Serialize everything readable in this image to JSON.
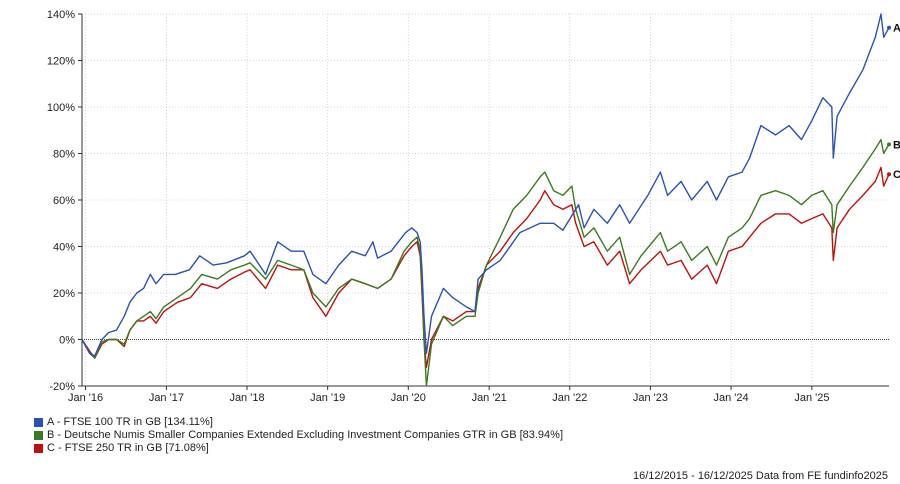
{
  "chart_data": {
    "type": "line",
    "title": "",
    "xlabel": "",
    "ylabel": "",
    "x_ticks": [
      "Jan '16",
      "Jan '17",
      "Jan '18",
      "Jan '19",
      "Jan '20",
      "Jan '21",
      "Jan '22",
      "Jan '23",
      "Jan '24",
      "Jan '25"
    ],
    "y_ticks": [
      "140%",
      "120%",
      "100%",
      "80%",
      "60%",
      "40%",
      "20%",
      "0%",
      "-20%"
    ],
    "ylim": [
      -20,
      140
    ],
    "xlim": [
      "2015-12-16",
      "2025-12-16"
    ],
    "grid": true,
    "zero_line": true,
    "legend_position": "bottom-left",
    "series": [
      {
        "name": "A - FTSE 100 TR in GB [134.11%]",
        "end_label": "A",
        "color": "#2a52b4",
        "points": [
          [
            "2015-12-16",
            0
          ],
          [
            "2016-01-20",
            -6
          ],
          [
            "2016-02-12",
            -7
          ],
          [
            "2016-03-15",
            0
          ],
          [
            "2016-04-15",
            3
          ],
          [
            "2016-05-20",
            4
          ],
          [
            "2016-06-24",
            10
          ],
          [
            "2016-07-20",
            16
          ],
          [
            "2016-08-20",
            20
          ],
          [
            "2016-09-20",
            22
          ],
          [
            "2016-10-20",
            28
          ],
          [
            "2016-11-15",
            24
          ],
          [
            "2016-12-20",
            28
          ],
          [
            "2017-02-10",
            28
          ],
          [
            "2017-04-15",
            30
          ],
          [
            "2017-06-01",
            36
          ],
          [
            "2017-08-01",
            32
          ],
          [
            "2017-10-01",
            33
          ],
          [
            "2017-12-20",
            36
          ],
          [
            "2018-01-15",
            38
          ],
          [
            "2018-03-26",
            28
          ],
          [
            "2018-05-20",
            42
          ],
          [
            "2018-07-20",
            38
          ],
          [
            "2018-09-15",
            38
          ],
          [
            "2018-10-26",
            28
          ],
          [
            "2018-12-24",
            24
          ],
          [
            "2019-02-20",
            32
          ],
          [
            "2019-04-20",
            38
          ],
          [
            "2019-06-20",
            36
          ],
          [
            "2019-07-25",
            42
          ],
          [
            "2019-08-15",
            35
          ],
          [
            "2019-10-15",
            38
          ],
          [
            "2019-12-20",
            46
          ],
          [
            "2020-01-17",
            48
          ],
          [
            "2020-02-10",
            46
          ],
          [
            "2020-02-24",
            42
          ],
          [
            "2020-03-03",
            30
          ],
          [
            "2020-03-12",
            10
          ],
          [
            "2020-03-23",
            -6
          ],
          [
            "2020-04-15",
            10
          ],
          [
            "2020-06-08",
            22
          ],
          [
            "2020-07-20",
            18
          ],
          [
            "2020-09-20",
            14
          ],
          [
            "2020-10-29",
            12
          ],
          [
            "2020-11-12",
            26
          ],
          [
            "2020-12-20",
            30
          ],
          [
            "2021-02-20",
            34
          ],
          [
            "2021-05-20",
            46
          ],
          [
            "2021-08-20",
            50
          ],
          [
            "2021-10-20",
            50
          ],
          [
            "2021-12-01",
            47
          ],
          [
            "2022-01-15",
            54
          ],
          [
            "2022-02-10",
            58
          ],
          [
            "2022-03-07",
            48
          ],
          [
            "2022-04-20",
            56
          ],
          [
            "2022-06-20",
            50
          ],
          [
            "2022-08-15",
            58
          ],
          [
            "2022-09-29",
            50
          ],
          [
            "2022-12-20",
            62
          ],
          [
            "2023-02-15",
            72
          ],
          [
            "2023-03-20",
            62
          ],
          [
            "2023-05-20",
            68
          ],
          [
            "2023-07-07",
            60
          ],
          [
            "2023-09-15",
            68
          ],
          [
            "2023-10-27",
            60
          ],
          [
            "2023-12-20",
            70
          ],
          [
            "2024-02-20",
            72
          ],
          [
            "2024-03-25",
            78
          ],
          [
            "2024-05-15",
            92
          ],
          [
            "2024-07-20",
            88
          ],
          [
            "2024-09-20",
            92
          ],
          [
            "2024-11-15",
            86
          ],
          [
            "2024-12-31",
            94
          ],
          [
            "2025-02-20",
            104
          ],
          [
            "2025-04-01",
            100
          ],
          [
            "2025-04-08",
            78
          ],
          [
            "2025-04-25",
            96
          ],
          [
            "2025-06-20",
            106
          ],
          [
            "2025-08-20",
            116
          ],
          [
            "2025-10-15",
            130
          ],
          [
            "2025-11-10",
            140
          ],
          [
            "2025-11-22",
            130
          ],
          [
            "2025-12-16",
            134.11
          ]
        ]
      },
      {
        "name": "B - Deutsche Numis Smaller Companies Extended Excluding Investment Companies GTR in GB [83.94%]",
        "end_label": "B",
        "color": "#3b7a1e",
        "points": [
          [
            "2015-12-16",
            0
          ],
          [
            "2016-01-20",
            -6
          ],
          [
            "2016-02-12",
            -8
          ],
          [
            "2016-03-15",
            -1
          ],
          [
            "2016-04-15",
            0
          ],
          [
            "2016-05-20",
            0
          ],
          [
            "2016-06-24",
            -2
          ],
          [
            "2016-07-20",
            4
          ],
          [
            "2016-08-20",
            8
          ],
          [
            "2016-09-20",
            10
          ],
          [
            "2016-10-20",
            12
          ],
          [
            "2016-11-15",
            9
          ],
          [
            "2016-12-20",
            14
          ],
          [
            "2017-02-20",
            18
          ],
          [
            "2017-04-20",
            22
          ],
          [
            "2017-06-10",
            28
          ],
          [
            "2017-08-20",
            26
          ],
          [
            "2017-10-20",
            30
          ],
          [
            "2017-12-20",
            32
          ],
          [
            "2018-01-15",
            33
          ],
          [
            "2018-03-26",
            26
          ],
          [
            "2018-05-20",
            34
          ],
          [
            "2018-07-20",
            32
          ],
          [
            "2018-09-15",
            30
          ],
          [
            "2018-10-26",
            20
          ],
          [
            "2018-12-24",
            14
          ],
          [
            "2019-02-20",
            22
          ],
          [
            "2019-04-20",
            26
          ],
          [
            "2019-06-20",
            24
          ],
          [
            "2019-08-15",
            22
          ],
          [
            "2019-10-15",
            26
          ],
          [
            "2019-12-13",
            38
          ],
          [
            "2020-01-17",
            42
          ],
          [
            "2020-02-10",
            44
          ],
          [
            "2020-02-24",
            38
          ],
          [
            "2020-03-05",
            20
          ],
          [
            "2020-03-12",
            0
          ],
          [
            "2020-03-23",
            -20
          ],
          [
            "2020-04-15",
            -2
          ],
          [
            "2020-06-08",
            10
          ],
          [
            "2020-07-20",
            6
          ],
          [
            "2020-09-20",
            10
          ],
          [
            "2020-10-29",
            10
          ],
          [
            "2020-11-12",
            20
          ],
          [
            "2020-12-20",
            32
          ],
          [
            "2021-02-20",
            44
          ],
          [
            "2021-04-20",
            56
          ],
          [
            "2021-06-20",
            62
          ],
          [
            "2021-08-20",
            70
          ],
          [
            "2021-09-10",
            72
          ],
          [
            "2021-10-20",
            64
          ],
          [
            "2021-12-01",
            62
          ],
          [
            "2022-01-10",
            66
          ],
          [
            "2022-01-28",
            56
          ],
          [
            "2022-03-07",
            44
          ],
          [
            "2022-04-20",
            48
          ],
          [
            "2022-06-20",
            38
          ],
          [
            "2022-08-15",
            44
          ],
          [
            "2022-09-29",
            28
          ],
          [
            "2022-11-20",
            36
          ],
          [
            "2023-02-15",
            46
          ],
          [
            "2023-03-20",
            38
          ],
          [
            "2023-05-20",
            42
          ],
          [
            "2023-07-07",
            34
          ],
          [
            "2023-09-15",
            40
          ],
          [
            "2023-10-27",
            32
          ],
          [
            "2023-12-20",
            44
          ],
          [
            "2024-02-20",
            48
          ],
          [
            "2024-03-25",
            52
          ],
          [
            "2024-05-15",
            62
          ],
          [
            "2024-07-20",
            64
          ],
          [
            "2024-09-20",
            62
          ],
          [
            "2024-11-15",
            58
          ],
          [
            "2024-12-31",
            62
          ],
          [
            "2025-02-20",
            64
          ],
          [
            "2025-04-01",
            58
          ],
          [
            "2025-04-08",
            46
          ],
          [
            "2025-04-25",
            58
          ],
          [
            "2025-06-20",
            66
          ],
          [
            "2025-08-20",
            74
          ],
          [
            "2025-10-15",
            82
          ],
          [
            "2025-11-10",
            86
          ],
          [
            "2025-11-22",
            80
          ],
          [
            "2025-12-16",
            83.94
          ]
        ]
      },
      {
        "name": "C - FTSE 250 TR in GB [71.08%]",
        "end_label": "C",
        "color": "#c0100c",
        "points": [
          [
            "2015-12-16",
            0
          ],
          [
            "2016-01-20",
            -5
          ],
          [
            "2016-02-12",
            -8
          ],
          [
            "2016-03-15",
            -2
          ],
          [
            "2016-04-15",
            0
          ],
          [
            "2016-05-20",
            0
          ],
          [
            "2016-06-24",
            -3
          ],
          [
            "2016-07-20",
            4
          ],
          [
            "2016-08-20",
            8
          ],
          [
            "2016-09-20",
            8
          ],
          [
            "2016-10-20",
            10
          ],
          [
            "2016-11-15",
            7
          ],
          [
            "2016-12-20",
            12
          ],
          [
            "2017-02-20",
            16
          ],
          [
            "2017-04-20",
            18
          ],
          [
            "2017-06-10",
            24
          ],
          [
            "2017-08-20",
            22
          ],
          [
            "2017-10-20",
            26
          ],
          [
            "2017-12-20",
            29
          ],
          [
            "2018-01-15",
            30
          ],
          [
            "2018-03-26",
            22
          ],
          [
            "2018-05-20",
            32
          ],
          [
            "2018-07-20",
            30
          ],
          [
            "2018-09-15",
            30
          ],
          [
            "2018-10-26",
            18
          ],
          [
            "2018-12-24",
            10
          ],
          [
            "2019-02-20",
            20
          ],
          [
            "2019-04-20",
            26
          ],
          [
            "2019-06-20",
            24
          ],
          [
            "2019-08-15",
            22
          ],
          [
            "2019-10-15",
            26
          ],
          [
            "2019-12-13",
            36
          ],
          [
            "2020-01-17",
            40
          ],
          [
            "2020-02-10",
            42
          ],
          [
            "2020-02-24",
            36
          ],
          [
            "2020-03-05",
            16
          ],
          [
            "2020-03-12",
            0
          ],
          [
            "2020-03-23",
            -12
          ],
          [
            "2020-04-15",
            0
          ],
          [
            "2020-06-08",
            10
          ],
          [
            "2020-07-20",
            8
          ],
          [
            "2020-09-20",
            12
          ],
          [
            "2020-10-29",
            12
          ],
          [
            "2020-11-12",
            22
          ],
          [
            "2020-12-20",
            32
          ],
          [
            "2021-02-20",
            38
          ],
          [
            "2021-04-20",
            46
          ],
          [
            "2021-06-20",
            52
          ],
          [
            "2021-08-20",
            60
          ],
          [
            "2021-09-10",
            64
          ],
          [
            "2021-10-20",
            58
          ],
          [
            "2021-12-01",
            56
          ],
          [
            "2022-01-10",
            58
          ],
          [
            "2022-01-28",
            50
          ],
          [
            "2022-03-07",
            40
          ],
          [
            "2022-04-20",
            42
          ],
          [
            "2022-06-20",
            32
          ],
          [
            "2022-08-15",
            38
          ],
          [
            "2022-09-29",
            24
          ],
          [
            "2022-11-20",
            30
          ],
          [
            "2023-02-15",
            38
          ],
          [
            "2023-03-20",
            32
          ],
          [
            "2023-05-20",
            34
          ],
          [
            "2023-07-07",
            26
          ],
          [
            "2023-09-15",
            32
          ],
          [
            "2023-10-27",
            24
          ],
          [
            "2023-12-20",
            38
          ],
          [
            "2024-02-20",
            40
          ],
          [
            "2024-03-25",
            44
          ],
          [
            "2024-05-15",
            50
          ],
          [
            "2024-07-20",
            54
          ],
          [
            "2024-09-20",
            54
          ],
          [
            "2024-11-15",
            50
          ],
          [
            "2024-12-31",
            52
          ],
          [
            "2025-02-20",
            54
          ],
          [
            "2025-04-01",
            48
          ],
          [
            "2025-04-08",
            34
          ],
          [
            "2025-04-25",
            48
          ],
          [
            "2025-06-20",
            56
          ],
          [
            "2025-08-20",
            62
          ],
          [
            "2025-10-15",
            68
          ],
          [
            "2025-11-10",
            74
          ],
          [
            "2025-11-22",
            66
          ],
          [
            "2025-12-16",
            71.08
          ]
        ]
      }
    ]
  },
  "footer": {
    "text": "16/12/2015 - 16/12/2025 Data from FE fundinfo2025"
  }
}
